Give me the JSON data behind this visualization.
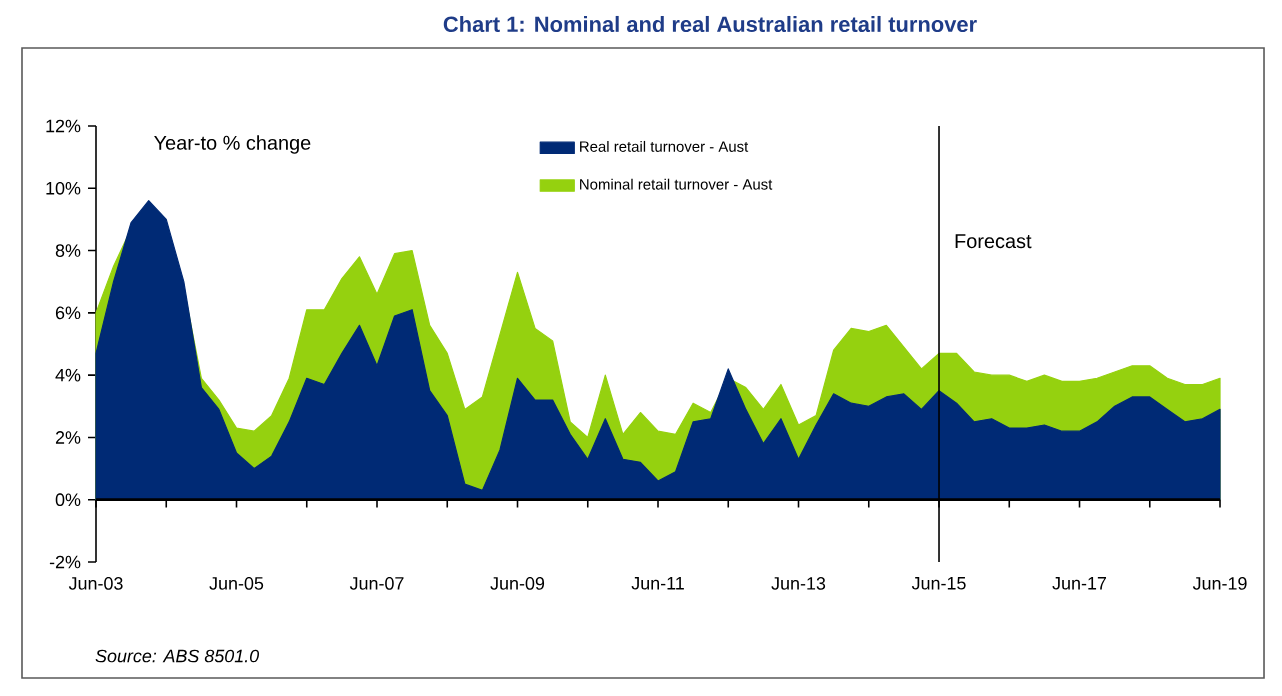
{
  "chart_data": {
    "type": "area",
    "title": "Chart 1:  Nominal and real Australian retail turnover",
    "ylabel": "Year-to % change",
    "x": [
      "2003-06",
      "2003-09",
      "2003-12",
      "2004-03",
      "2004-06",
      "2004-09",
      "2004-12",
      "2005-03",
      "2005-06",
      "2005-09",
      "2005-12",
      "2006-03",
      "2006-06",
      "2006-09",
      "2006-12",
      "2007-03",
      "2007-06",
      "2007-09",
      "2007-12",
      "2008-03",
      "2008-06",
      "2008-09",
      "2008-12",
      "2009-03",
      "2009-06",
      "2009-09",
      "2009-12",
      "2010-03",
      "2010-06",
      "2010-09",
      "2010-12",
      "2011-03",
      "2011-06",
      "2011-09",
      "2011-12",
      "2012-03",
      "2012-06",
      "2012-09",
      "2012-12",
      "2013-03",
      "2013-06",
      "2013-09",
      "2013-12",
      "2014-03",
      "2014-06",
      "2014-09",
      "2014-12",
      "2015-03",
      "2015-06",
      "2015-09",
      "2015-12",
      "2016-03",
      "2016-06",
      "2016-09",
      "2016-12",
      "2017-03",
      "2017-06",
      "2017-09",
      "2017-12",
      "2018-03",
      "2018-06",
      "2018-09",
      "2018-12",
      "2019-03",
      "2019-06"
    ],
    "series": [
      {
        "name": "Real retail turnover - Aust",
        "color": "#002a75",
        "values": [
          4.7,
          7.0,
          8.9,
          9.6,
          9.0,
          7.0,
          3.6,
          2.9,
          1.5,
          1.0,
          1.4,
          2.5,
          3.9,
          3.7,
          4.7,
          5.6,
          4.3,
          5.9,
          6.1,
          3.5,
          2.7,
          0.5,
          0.3,
          1.6,
          3.9,
          3.2,
          3.2,
          2.1,
          1.3,
          2.6,
          1.3,
          1.2,
          0.6,
          0.9,
          2.5,
          2.6,
          4.2,
          2.9,
          1.8,
          2.6,
          1.3,
          2.4,
          3.4,
          3.1,
          3.0,
          3.3,
          3.4,
          2.9,
          3.5,
          3.1,
          2.5,
          2.6,
          2.3,
          2.3,
          2.4,
          2.2,
          2.2,
          2.5,
          3.0,
          3.3,
          3.3,
          2.9,
          2.5,
          2.6,
          2.9
        ]
      },
      {
        "name": "Nominal retail turnover - Aust",
        "color": "#95d10f",
        "values": [
          6.0,
          7.5,
          8.7,
          null,
          null,
          6.8,
          3.9,
          3.2,
          2.3,
          2.2,
          2.7,
          3.9,
          6.1,
          6.1,
          7.1,
          7.8,
          6.6,
          7.9,
          8.0,
          5.6,
          4.7,
          2.9,
          3.3,
          5.3,
          7.3,
          5.5,
          5.1,
          2.5,
          2.0,
          4.0,
          2.1,
          2.8,
          2.2,
          2.1,
          3.1,
          2.8,
          3.9,
          3.6,
          2.9,
          3.7,
          2.4,
          2.7,
          4.8,
          5.5,
          5.4,
          5.6,
          4.9,
          4.2,
          4.7,
          4.7,
          4.1,
          4.0,
          4.0,
          3.8,
          4.0,
          3.8,
          3.8,
          3.9,
          4.1,
          4.3,
          4.3,
          3.9,
          3.7,
          3.7,
          3.9
        ]
      }
    ],
    "xlim": [
      "2003-06",
      "2019-06"
    ],
    "xticks": [
      {
        "value": "2003-06",
        "label": "Jun-03"
      },
      {
        "value": "2004-06",
        "label": null
      },
      {
        "value": "2005-06",
        "label": "Jun-05"
      },
      {
        "value": "2006-06",
        "label": null
      },
      {
        "value": "2007-06",
        "label": "Jun-07"
      },
      {
        "value": "2008-06",
        "label": null
      },
      {
        "value": "2009-06",
        "label": "Jun-09"
      },
      {
        "value": "2010-06",
        "label": null
      },
      {
        "value": "2011-06",
        "label": "Jun-11"
      },
      {
        "value": "2012-06",
        "label": null
      },
      {
        "value": "2013-06",
        "label": "Jun-13"
      },
      {
        "value": "2014-06",
        "label": null
      },
      {
        "value": "2015-06",
        "label": "Jun-15"
      },
      {
        "value": "2016-06",
        "label": null
      },
      {
        "value": "2017-06",
        "label": "Jun-17"
      },
      {
        "value": "2018-06",
        "label": null
      },
      {
        "value": "2019-06",
        "label": "Jun-19"
      }
    ],
    "ylim": [
      -2,
      12
    ],
    "yticks": [
      {
        "value": -2,
        "label": "-2%"
      },
      {
        "value": 0,
        "label": "0%"
      },
      {
        "value": 2,
        "label": "2%"
      },
      {
        "value": 4,
        "label": "4%"
      },
      {
        "value": 6,
        "label": "6%"
      },
      {
        "value": 8,
        "label": "8%"
      },
      {
        "value": 10,
        "label": "10%"
      },
      {
        "value": 12,
        "label": "12%"
      }
    ],
    "ref_lines": [
      {
        "axis": "x",
        "value": "2015-06",
        "label": "Forecast"
      }
    ],
    "legend": "top",
    "annotations": [
      "Source: ABS 8501.0"
    ]
  }
}
